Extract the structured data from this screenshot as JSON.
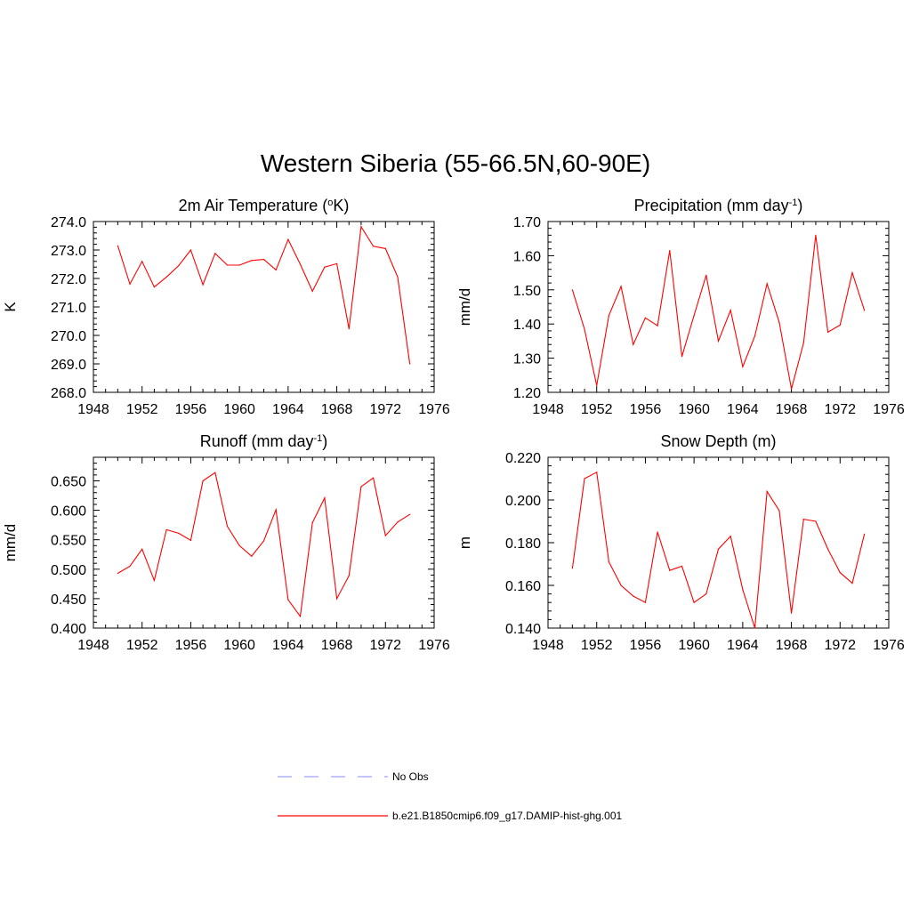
{
  "title": "Western Siberia (55-66.5N,60-90E)",
  "legend": [
    {
      "label": "No Obs",
      "color": "#a0a0ff",
      "style": "dashed"
    },
    {
      "label": "b.e21.B1850cmip6.f09_g17.DAMIP-hist-ghg.001",
      "color": "#ff0000",
      "style": "solid"
    }
  ],
  "chart_data": [
    {
      "type": "line",
      "title": "2m Air Temperature",
      "title_unit": "K",
      "title_unit_prefix": "o",
      "ylabel": "K",
      "xlim": [
        1948,
        1976
      ],
      "ylim": [
        268.0,
        274.0
      ],
      "xticks": [
        1948,
        1952,
        1956,
        1960,
        1964,
        1968,
        1972,
        1976
      ],
      "yticks": [
        "268.0",
        "269.0",
        "270.0",
        "271.0",
        "272.0",
        "273.0",
        "274.0"
      ],
      "series": [
        {
          "color": "#ff0000",
          "x": [
            1950,
            1951,
            1952,
            1953,
            1954,
            1955,
            1956,
            1957,
            1958,
            1959,
            1960,
            1961,
            1962,
            1963,
            1964,
            1965,
            1966,
            1967,
            1968,
            1969,
            1970,
            1971,
            1972,
            1973,
            1974
          ],
          "values": [
            273.15,
            271.8,
            272.6,
            271.7,
            272.05,
            272.45,
            273.0,
            271.78,
            272.88,
            272.47,
            272.47,
            272.63,
            272.67,
            272.3,
            273.37,
            272.5,
            271.55,
            272.4,
            272.52,
            270.23,
            273.82,
            273.13,
            273.05,
            272.05,
            269.0
          ]
        }
      ]
    },
    {
      "type": "line",
      "title": "Precipitation (mm day",
      "title_sup": "-1",
      "title_end": ")",
      "ylabel": "mm/d",
      "xlim": [
        1948,
        1976
      ],
      "ylim": [
        1.2,
        1.7
      ],
      "xticks": [
        1948,
        1952,
        1956,
        1960,
        1964,
        1968,
        1972,
        1976
      ],
      "yticks": [
        "1.20",
        "1.30",
        "1.40",
        "1.50",
        "1.60",
        "1.70"
      ],
      "series": [
        {
          "color": "#ff0000",
          "x": [
            1950,
            1951,
            1952,
            1953,
            1954,
            1955,
            1956,
            1957,
            1958,
            1959,
            1960,
            1961,
            1962,
            1963,
            1964,
            1965,
            1966,
            1967,
            1968,
            1969,
            1970,
            1971,
            1972,
            1973,
            1974
          ],
          "values": [
            1.5,
            1.385,
            1.22,
            1.425,
            1.51,
            1.34,
            1.418,
            1.395,
            1.615,
            1.305,
            1.425,
            1.543,
            1.35,
            1.44,
            1.275,
            1.365,
            1.518,
            1.405,
            1.21,
            1.345,
            1.66,
            1.376,
            1.397,
            1.55,
            1.44
          ]
        }
      ]
    },
    {
      "type": "line",
      "title": "Runoff (mm day",
      "title_sup": "-1",
      "title_end": ")",
      "ylabel": "mm/d",
      "xlim": [
        1948,
        1976
      ],
      "ylim": [
        0.4,
        0.69
      ],
      "xticks": [
        1948,
        1952,
        1956,
        1960,
        1964,
        1968,
        1972,
        1976
      ],
      "yticks": [
        "0.400",
        "0.450",
        "0.500",
        "0.550",
        "0.600",
        "0.650"
      ],
      "series": [
        {
          "color": "#ff0000",
          "x": [
            1950,
            1951,
            1952,
            1953,
            1954,
            1955,
            1956,
            1957,
            1958,
            1959,
            1960,
            1961,
            1962,
            1963,
            1964,
            1965,
            1966,
            1967,
            1968,
            1969,
            1970,
            1971,
            1972,
            1973,
            1974
          ],
          "values": [
            0.493,
            0.505,
            0.534,
            0.481,
            0.567,
            0.561,
            0.549,
            0.65,
            0.664,
            0.573,
            0.54,
            0.522,
            0.548,
            0.601,
            0.448,
            0.42,
            0.579,
            0.621,
            0.45,
            0.489,
            0.64,
            0.655,
            0.557,
            0.58,
            0.593
          ]
        }
      ]
    },
    {
      "type": "line",
      "title": "Snow Depth (m)",
      "ylabel": "m",
      "xlim": [
        1948,
        1976
      ],
      "ylim": [
        0.14,
        0.22
      ],
      "xticks": [
        1948,
        1952,
        1956,
        1960,
        1964,
        1968,
        1972,
        1976
      ],
      "yticks": [
        "0.140",
        "0.160",
        "0.180",
        "0.200",
        "0.220"
      ],
      "series": [
        {
          "color": "#ff0000",
          "x": [
            1950,
            1951,
            1952,
            1953,
            1954,
            1955,
            1956,
            1957,
            1958,
            1959,
            1960,
            1961,
            1962,
            1963,
            1964,
            1965,
            1966,
            1967,
            1968,
            1969,
            1970,
            1971,
            1972,
            1973,
            1974
          ],
          "values": [
            0.168,
            0.21,
            0.213,
            0.171,
            0.16,
            0.155,
            0.152,
            0.185,
            0.167,
            0.169,
            0.152,
            0.156,
            0.177,
            0.183,
            0.158,
            0.14,
            0.204,
            0.195,
            0.147,
            0.191,
            0.19,
            0.177,
            0.166,
            0.161,
            0.184
          ]
        }
      ]
    }
  ]
}
